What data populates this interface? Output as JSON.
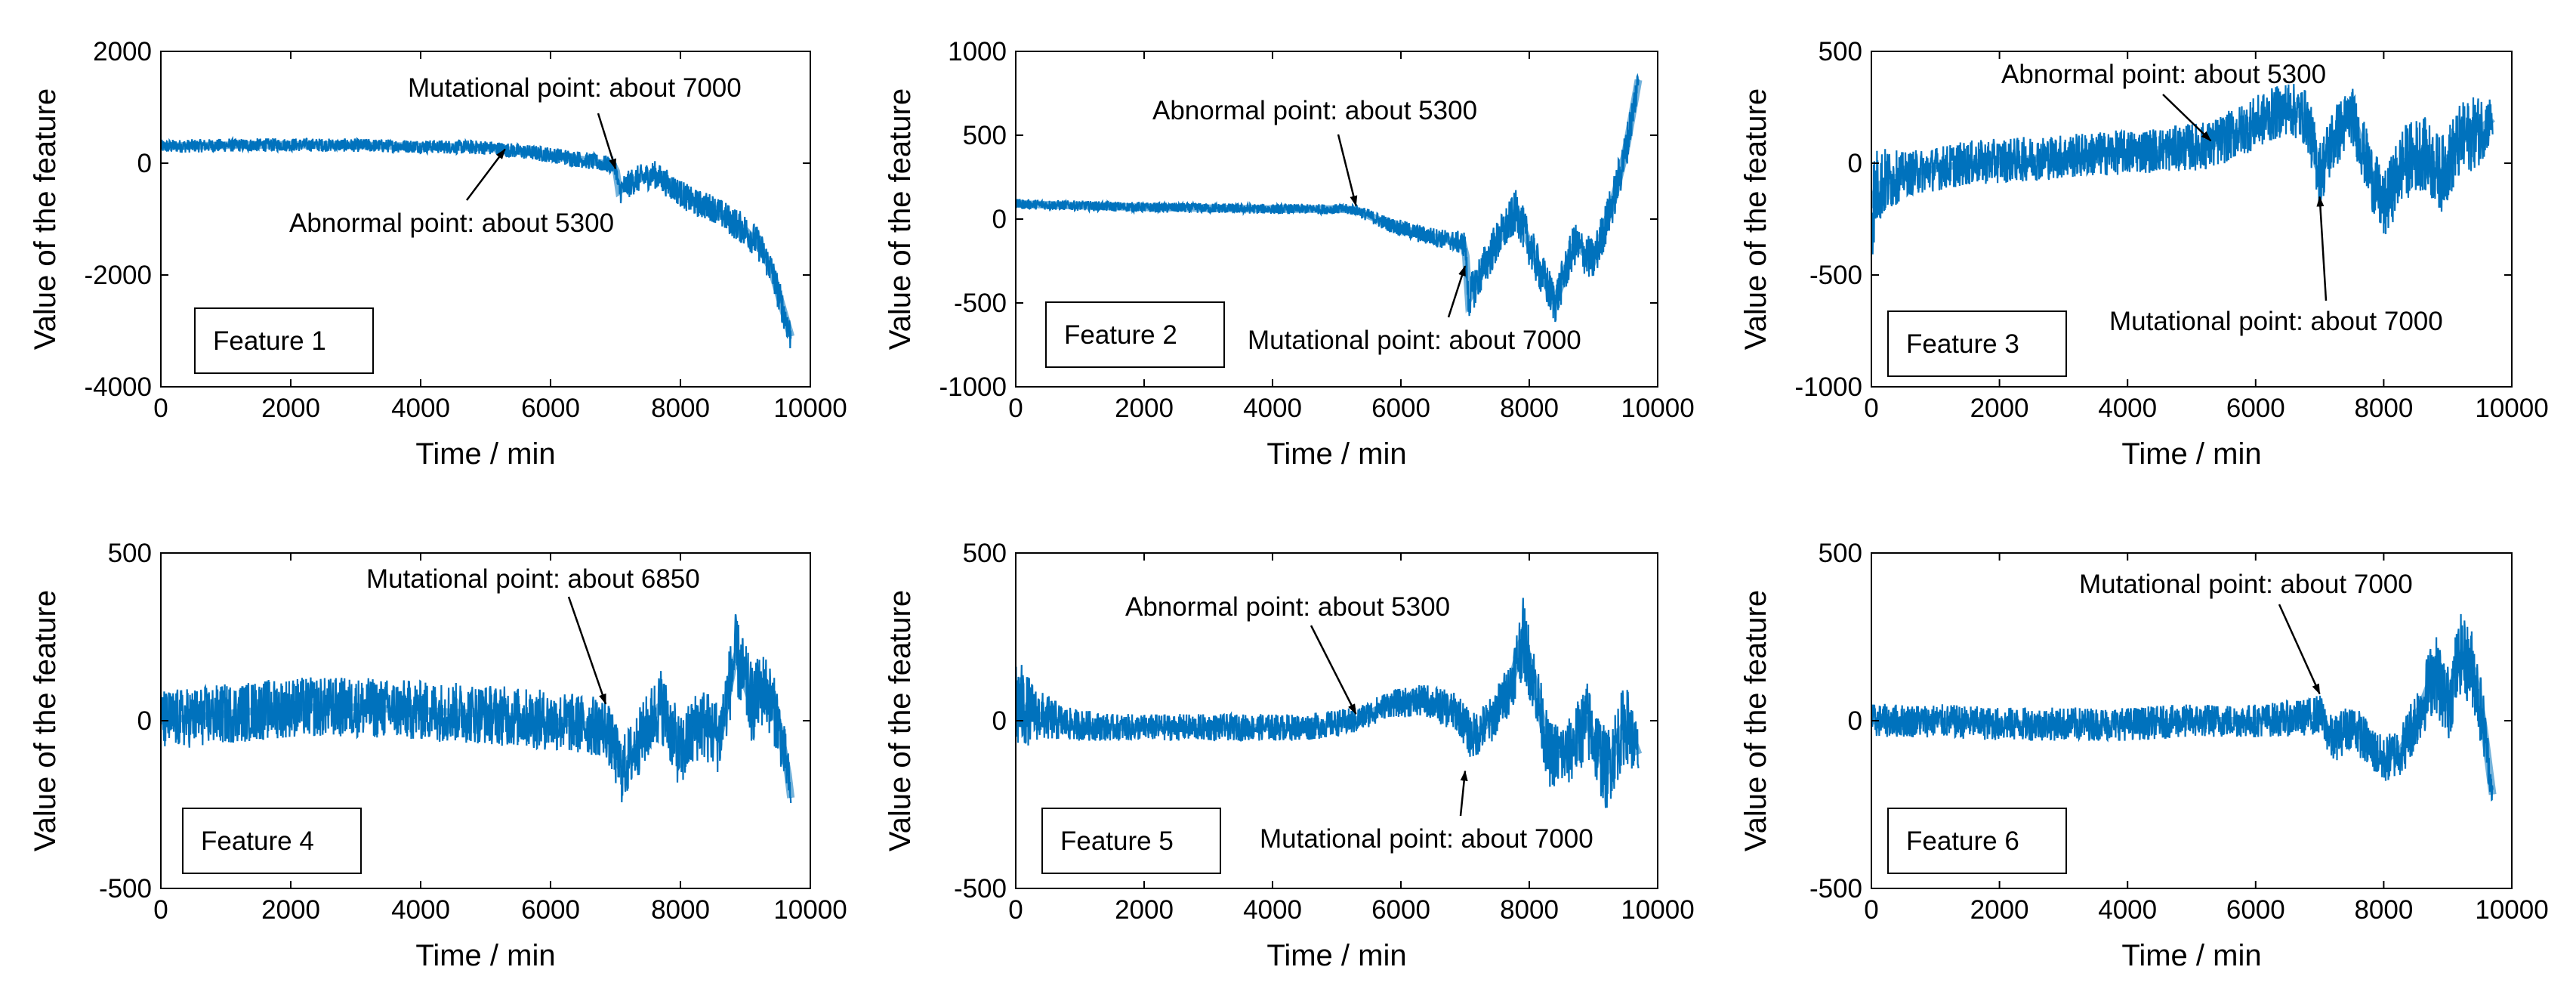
{
  "series_color": "#0072BD",
  "chart_data": [
    {
      "type": "line",
      "title": "",
      "legend": "Feature 1",
      "xlabel": "Time / min",
      "ylabel": "Value of the feature",
      "xlim": [
        0,
        10000
      ],
      "ylim": [
        -4000,
        2000
      ],
      "xticks": [
        0,
        2000,
        4000,
        6000,
        8000,
        10000
      ],
      "yticks": [
        -4000,
        -2000,
        0,
        2000
      ],
      "series": [
        {
          "name": "Feature 1",
          "x": [
            0,
            1000,
            2000,
            3000,
            4000,
            5000,
            6000,
            6500,
            7000,
            7050,
            7300,
            7600,
            7900,
            8200,
            8500,
            8800,
            9000,
            9200,
            9400,
            9550,
            9650,
            9700
          ],
          "y": [
            300,
            320,
            330,
            320,
            300,
            280,
            150,
            60,
            -50,
            -500,
            -300,
            -200,
            -450,
            -700,
            -800,
            -1050,
            -1200,
            -1450,
            -1900,
            -2500,
            -2900,
            -3100
          ],
          "noise": [
            120,
            120,
            120,
            120,
            120,
            130,
            140,
            150,
            160,
            250,
            250,
            250,
            250,
            250,
            250,
            280,
            300,
            300,
            300,
            300,
            300,
            300
          ]
        }
      ],
      "annotations": [
        {
          "text": "Mutational point: about 7000",
          "x": 7000,
          "y": -100
        },
        {
          "text": "Abnormal point: about 5300",
          "x": 5300,
          "y": 250
        }
      ]
    },
    {
      "type": "line",
      "title": "",
      "legend": "Feature 2",
      "xlabel": "Time / min",
      "ylabel": "Value of the feature",
      "xlim": [
        0,
        10000
      ],
      "ylim": [
        -1000,
        1000
      ],
      "xticks": [
        0,
        2000,
        4000,
        6000,
        8000,
        10000
      ],
      "yticks": [
        -1000,
        -500,
        0,
        500,
        1000
      ],
      "series": [
        {
          "name": "Feature 2",
          "x": [
            0,
            1000,
            2000,
            3000,
            4000,
            5000,
            5300,
            5800,
            6300,
            6800,
            7000,
            7050,
            7400,
            7800,
            8100,
            8400,
            8700,
            9000,
            9300,
            9500,
            9700
          ],
          "y": [
            90,
            80,
            70,
            65,
            60,
            60,
            55,
            -30,
            -90,
            -130,
            -150,
            -480,
            -200,
            50,
            -250,
            -500,
            -150,
            -250,
            100,
            400,
            830
          ],
          "noise": [
            30,
            30,
            30,
            30,
            30,
            30,
            35,
            45,
            55,
            60,
            80,
            120,
            130,
            130,
            130,
            130,
            130,
            130,
            130,
            130,
            100
          ]
        }
      ],
      "annotations": [
        {
          "text": "Abnormal point: about 5300",
          "x": 5300,
          "y": 80
        },
        {
          "text": "Mutational point: about 7000",
          "x": 7000,
          "y": -280
        }
      ]
    },
    {
      "type": "line",
      "title": "",
      "legend": "Feature 3",
      "xlabel": "Time / min",
      "ylabel": "Value of the feature",
      "xlim": [
        0,
        10000
      ],
      "ylim": [
        -1000,
        500
      ],
      "xticks": [
        0,
        2000,
        4000,
        6000,
        8000,
        10000
      ],
      "yticks": [
        -1000,
        -500,
        0,
        500
      ],
      "series": [
        {
          "name": "Feature 3",
          "x": [
            0,
            100,
            500,
            1500,
            2500,
            3500,
            4500,
            5300,
            6000,
            6500,
            6800,
            7000,
            7200,
            7500,
            7800,
            8000,
            8300,
            8600,
            8900,
            9200,
            9500,
            9700
          ],
          "y": [
            -200,
            -100,
            -50,
            0,
            20,
            40,
            60,
            80,
            180,
            250,
            200,
            -50,
            100,
            220,
            -50,
            -200,
            0,
            50,
            -50,
            100,
            150,
            200
          ],
          "noise": [
            250,
            180,
            100,
            100,
            100,
            100,
            100,
            110,
            120,
            120,
            130,
            150,
            150,
            130,
            150,
            150,
            170,
            170,
            170,
            170,
            160,
            100
          ]
        }
      ],
      "annotations": [
        {
          "text": "Abnormal point: about 5300",
          "x": 5300,
          "y": 100
        },
        {
          "text": "Mutational point: about 7000",
          "x": 7000,
          "y": -150
        }
      ]
    },
    {
      "type": "line",
      "title": "",
      "legend": "Feature 4",
      "xlabel": "Time / min",
      "ylabel": "Value of the feature",
      "xlim": [
        0,
        10000
      ],
      "ylim": [
        -500,
        500
      ],
      "xticks": [
        0,
        2000,
        4000,
        6000,
        8000,
        10000
      ],
      "yticks": [
        -500,
        0,
        500
      ],
      "series": [
        {
          "name": "Feature 4",
          "x": [
            0,
            1000,
            2000,
            3000,
            4000,
            5000,
            6000,
            6850,
            7100,
            7400,
            7700,
            8000,
            8300,
            8600,
            8850,
            9100,
            9300,
            9500,
            9650,
            9700
          ],
          "y": [
            0,
            20,
            40,
            40,
            30,
            20,
            0,
            -20,
            -150,
            -50,
            50,
            -100,
            0,
            -50,
            200,
            50,
            100,
            0,
            -150,
            -230
          ],
          "noise": [
            90,
            90,
            90,
            90,
            90,
            90,
            90,
            90,
            100,
            100,
            110,
            110,
            110,
            110,
            120,
            120,
            110,
            100,
            80,
            40
          ]
        }
      ],
      "annotations": [
        {
          "text": "Mutational point: about 6850",
          "x": 6850,
          "y": 50
        }
      ]
    },
    {
      "type": "line",
      "title": "",
      "legend": "Feature 5",
      "xlabel": "Time / min",
      "ylabel": "Value of the feature",
      "xlim": [
        0,
        10000
      ],
      "ylim": [
        -500,
        500
      ],
      "xticks": [
        0,
        2000,
        4000,
        6000,
        8000,
        10000
      ],
      "yticks": [
        -500,
        0,
        500
      ],
      "series": [
        {
          "name": "Feature 5",
          "x": [
            0,
            300,
            800,
            1500,
            3000,
            4500,
            5300,
            5800,
            6400,
            6900,
            7100,
            7400,
            7700,
            7900,
            8100,
            8300,
            8600,
            8900,
            9200,
            9500,
            9700
          ],
          "y": [
            50,
            20,
            -10,
            -20,
            -20,
            -20,
            0,
            50,
            60,
            20,
            -50,
            0,
            100,
            250,
            100,
            -100,
            -100,
            0,
            -150,
            0,
            -100
          ],
          "noise": [
            150,
            80,
            50,
            40,
            40,
            40,
            40,
            40,
            50,
            60,
            70,
            70,
            80,
            120,
            100,
            100,
            100,
            120,
            120,
            120,
            80
          ]
        }
      ],
      "annotations": [
        {
          "text": "Abnormal point: about 5300",
          "x": 5300,
          "y": 20
        },
        {
          "text": "Mutational point: about 7000",
          "x": 7000,
          "y": -150
        }
      ]
    },
    {
      "type": "line",
      "title": "",
      "legend": "Feature 6",
      "xlabel": "Time / min",
      "ylabel": "Value of the feature",
      "xlim": [
        0,
        10000
      ],
      "ylim": [
        -500,
        500
      ],
      "xticks": [
        0,
        2000,
        4000,
        6000,
        8000,
        10000
      ],
      "yticks": [
        -500,
        0,
        500
      ],
      "series": [
        {
          "name": "Feature 6",
          "x": [
            0,
            1000,
            2000,
            3000,
            4000,
            5000,
            6000,
            6800,
            7000,
            7200,
            7500,
            7800,
            8000,
            8300,
            8600,
            8800,
            9000,
            9200,
            9400,
            9550,
            9700
          ],
          "y": [
            0,
            0,
            -10,
            -10,
            -10,
            0,
            0,
            10,
            20,
            -60,
            -10,
            -80,
            -120,
            -80,
            50,
            150,
            50,
            200,
            150,
            0,
            -220
          ],
          "noise": [
            50,
            50,
            50,
            50,
            50,
            50,
            50,
            55,
            60,
            70,
            70,
            70,
            70,
            80,
            100,
            120,
            120,
            120,
            120,
            100,
            40
          ]
        }
      ],
      "annotations": [
        {
          "text": "Mutational point: about 7000",
          "x": 7000,
          "y": 80
        }
      ]
    }
  ]
}
